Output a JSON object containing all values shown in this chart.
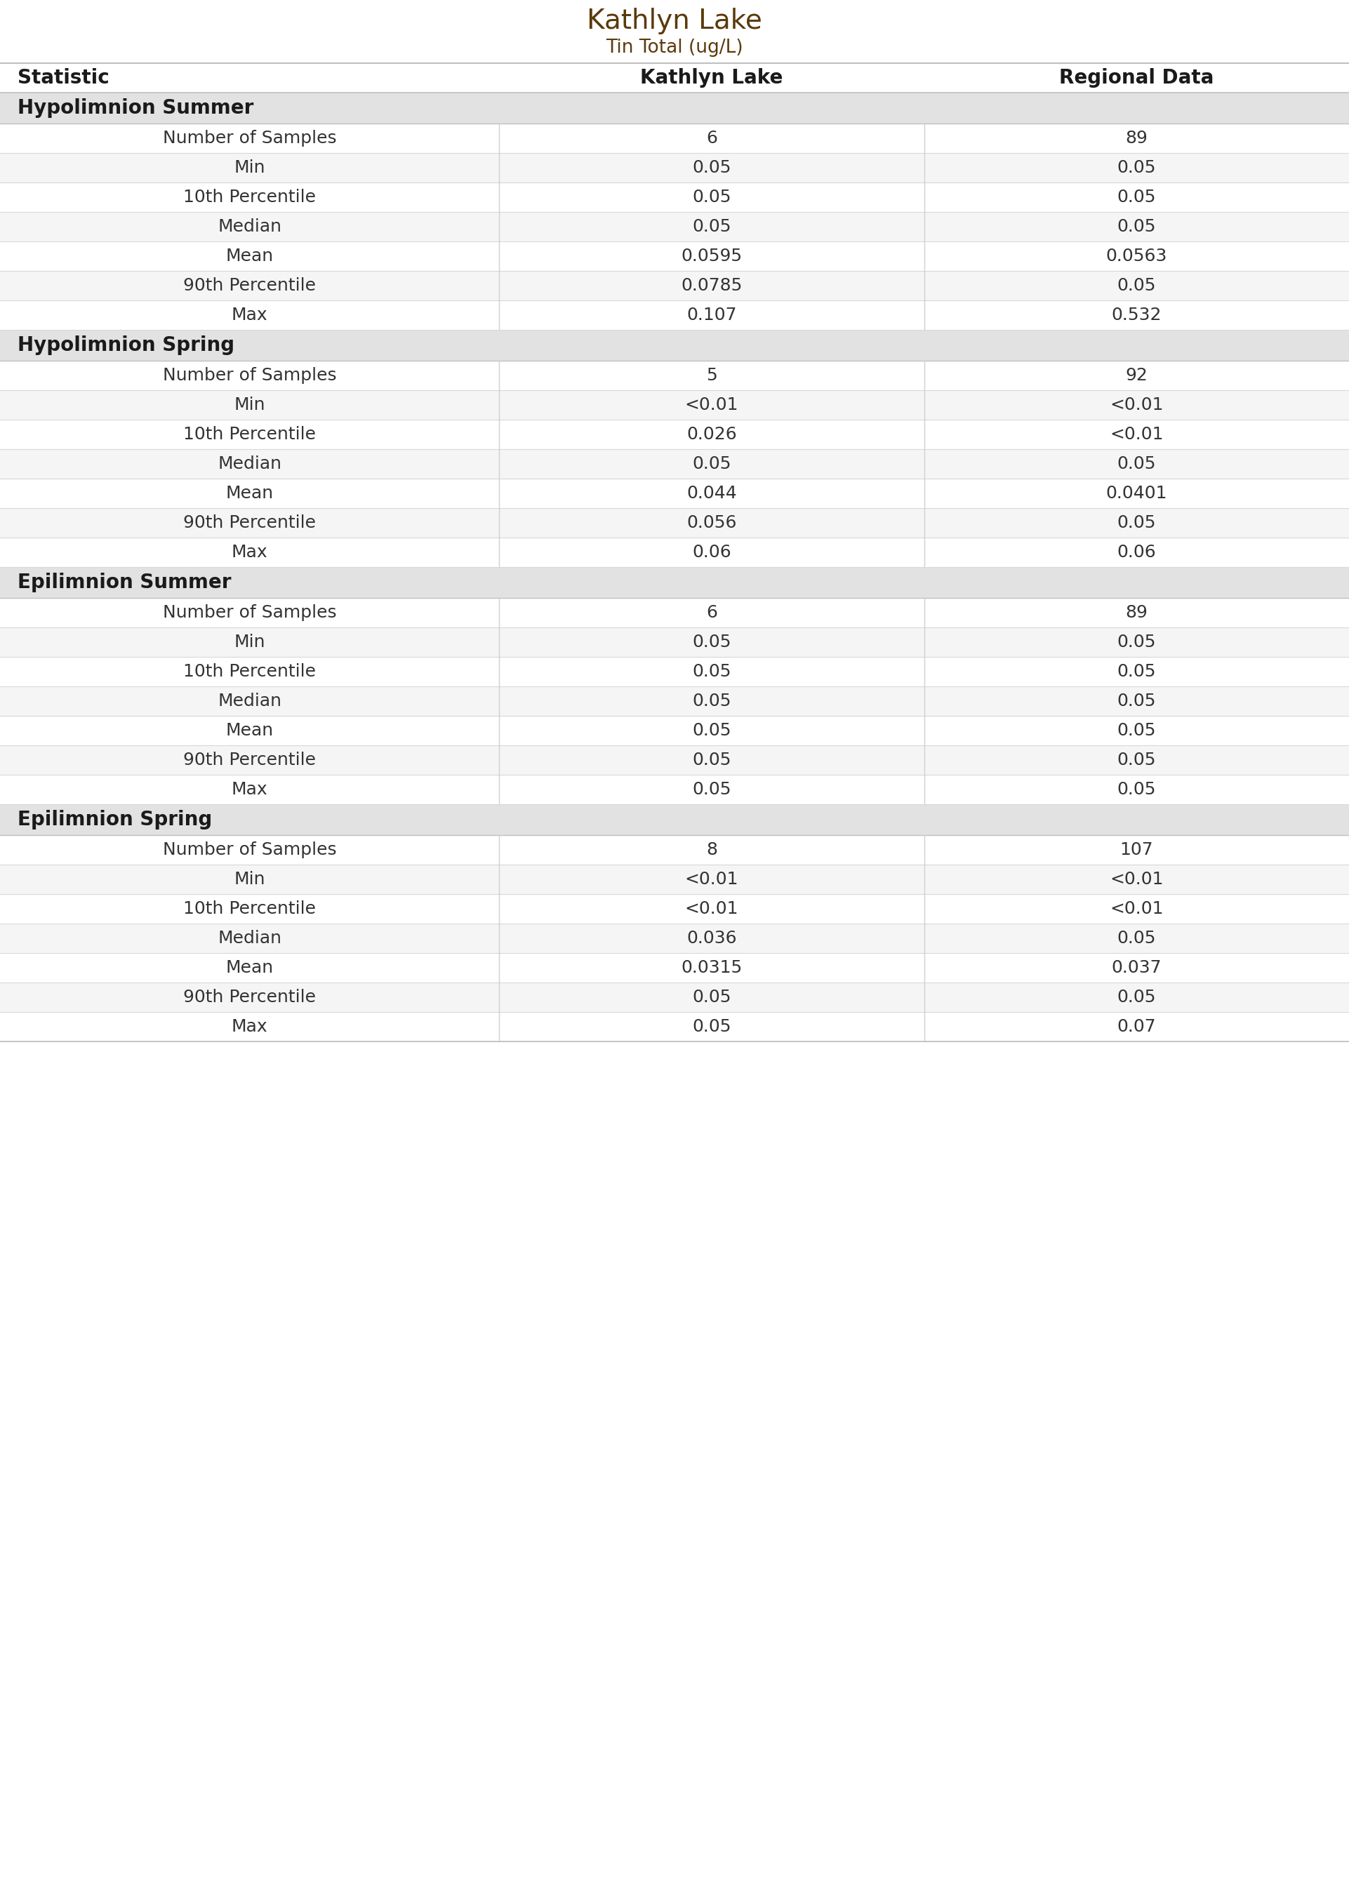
{
  "title": "Kathlyn Lake",
  "subtitle": "Tin Total (ug/L)",
  "col_headers": [
    "Statistic",
    "Kathlyn Lake",
    "Regional Data"
  ],
  "sections": [
    {
      "header": "Hypolimnion Summer",
      "rows": [
        [
          "Number of Samples",
          "6",
          "89"
        ],
        [
          "Min",
          "0.05",
          "0.05"
        ],
        [
          "10th Percentile",
          "0.05",
          "0.05"
        ],
        [
          "Median",
          "0.05",
          "0.05"
        ],
        [
          "Mean",
          "0.0595",
          "0.0563"
        ],
        [
          "90th Percentile",
          "0.0785",
          "0.05"
        ],
        [
          "Max",
          "0.107",
          "0.532"
        ]
      ]
    },
    {
      "header": "Hypolimnion Spring",
      "rows": [
        [
          "Number of Samples",
          "5",
          "92"
        ],
        [
          "Min",
          "<0.01",
          "<0.01"
        ],
        [
          "10th Percentile",
          "0.026",
          "<0.01"
        ],
        [
          "Median",
          "0.05",
          "0.05"
        ],
        [
          "Mean",
          "0.044",
          "0.0401"
        ],
        [
          "90th Percentile",
          "0.056",
          "0.05"
        ],
        [
          "Max",
          "0.06",
          "0.06"
        ]
      ]
    },
    {
      "header": "Epilimnion Summer",
      "rows": [
        [
          "Number of Samples",
          "6",
          "89"
        ],
        [
          "Min",
          "0.05",
          "0.05"
        ],
        [
          "10th Percentile",
          "0.05",
          "0.05"
        ],
        [
          "Median",
          "0.05",
          "0.05"
        ],
        [
          "Mean",
          "0.05",
          "0.05"
        ],
        [
          "90th Percentile",
          "0.05",
          "0.05"
        ],
        [
          "Max",
          "0.05",
          "0.05"
        ]
      ]
    },
    {
      "header": "Epilimnion Spring",
      "rows": [
        [
          "Number of Samples",
          "8",
          "107"
        ],
        [
          "Min",
          "<0.01",
          "<0.01"
        ],
        [
          "10th Percentile",
          "<0.01",
          "<0.01"
        ],
        [
          "Median",
          "0.036",
          "0.05"
        ],
        [
          "Mean",
          "0.0315",
          "0.037"
        ],
        [
          "90th Percentile",
          "0.05",
          "0.05"
        ],
        [
          "Max",
          "0.05",
          "0.07"
        ]
      ]
    }
  ],
  "title_color": "#5B3A0A",
  "subtitle_color": "#5B3A0A",
  "col_header_text_color": "#1a1a1a",
  "section_header_text_color": "#1a1a1a",
  "statistic_text_color": "#333333",
  "data_text_color": "#333333",
  "section_header_bg": "#E2E2E2",
  "row_bg_white": "#ffffff",
  "row_bg_light": "#F5F5F5",
  "border_color": "#D0D0D0",
  "col_separator_color": "#D0D0D0",
  "title_fontsize": 28,
  "subtitle_fontsize": 19,
  "col_header_fontsize": 20,
  "section_header_fontsize": 20,
  "data_fontsize": 18,
  "col_split1": 0.37,
  "col_split2": 0.685
}
